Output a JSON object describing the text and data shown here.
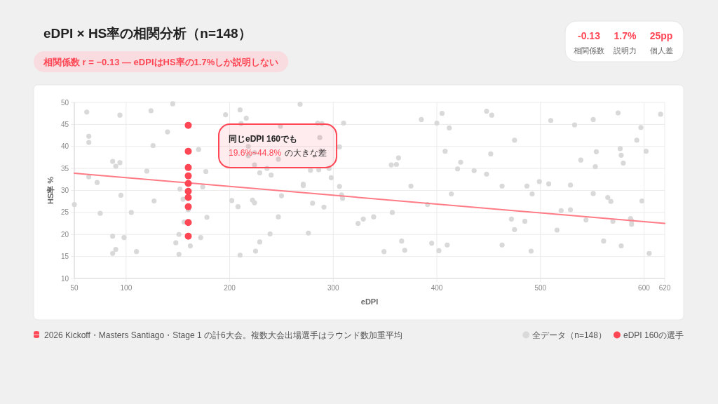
{
  "chart_data": {
    "type": "scatter",
    "title": "eDPI × HS率の相関分析（n=148）",
    "subtitle": "相関係数 r = −0.13 — eDPIはHS率の1.7%しか説明しない",
    "xlabel": "eDPI",
    "ylabel": "HS率 %",
    "annotations": [
      "-0.13",
      "相関係数",
      "1.7%",
      "説明力",
      "25pp",
      "個人差",
      "同じeDPI 160でも",
      "19.6%~44.8%",
      "の大きな差",
      "2026 Kickoff・Masters Santiago・Stage 1 の計6大会。複数大会出場選手はラウンド数加重平均"
    ],
    "xlim": [
      50,
      620
    ],
    "xticks": [
      50,
      100,
      200,
      300,
      400,
      500,
      600,
      620
    ],
    "ylim": [
      10,
      50
    ],
    "yticks": [
      10,
      15,
      20,
      25,
      30,
      35,
      40,
      45,
      50
    ],
    "grid": true,
    "legend": "bottom right",
    "marker": "circle",
    "series": [
      {
        "name": "全データ（n=148）",
        "color": "#d9d9d9",
        "x": [
          50,
          62,
          64,
          64,
          64,
          72,
          75,
          87,
          90,
          94,
          94,
          95,
          87,
          90,
          87,
          98,
          105,
          110,
          120,
          124,
          126,
          127,
          140,
          145,
          148,
          151,
          151,
          152,
          155,
          156,
          162,
          160,
          170,
          177,
          174,
          178,
          172,
          196,
          210,
          211,
          216,
          202,
          208,
          210,
          268,
          249,
          227,
          218,
          224,
          218,
          287,
          288,
          306,
          247,
          224,
          222,
          224,
          229,
          236,
          240,
          250,
          247,
          239,
          229,
          225,
          271,
          271,
          278,
          286,
          296,
          298,
          280,
          291,
          276,
          285,
          289,
          310,
          306,
          308,
          309,
          324,
          329,
          339,
          349,
          356,
          361,
          363,
          357,
          366,
          369,
          375,
          385,
          391,
          395,
          400,
          402,
          405,
          412,
          408,
          410,
          414,
          420,
          423,
          436,
          448,
          448,
          453,
          452,
          475,
          463,
          472,
          475,
          485,
          463,
          487,
          492,
          491,
          499,
          508,
          510,
          516,
          520,
          529,
          529,
          533,
          539,
          544,
          551,
          554,
          553,
          551,
          561,
          565,
          568,
          570,
          575,
          577,
          578,
          580,
          578,
          587,
          588,
          588,
          593,
          597,
          598,
          602,
          605,
          616
        ],
        "values": [
          26.8,
          47.8,
          42.3,
          40.9,
          33.1,
          31.8,
          24.8,
          36.6,
          35.5,
          36.3,
          47.1,
          28.9,
          19.6,
          16.6,
          15.7,
          19.3,
          25.0,
          16.1,
          34.4,
          48.1,
          40.2,
          27.6,
          43.3,
          49.7,
          18.1,
          15.5,
          20.0,
          30.3,
          28.0,
          22.8,
          17.4,
          25.6,
          39.3,
          34.3,
          30.8,
          23.9,
          19.3,
          47.2,
          48.3,
          45.2,
          46.4,
          27.7,
          26.3,
          15.3,
          49.6,
          44.6,
          42.2,
          40.0,
          38.6,
          37.9,
          42.0,
          39.0,
          39.9,
          37.1,
          35.8,
          27.8,
          27.2,
          34.0,
          35.0,
          33.5,
          28.8,
          24.0,
          20.1,
          18.3,
          16.2,
          31.4,
          31.1,
          34.6,
          34.7,
          35.0,
          32.9,
          27.1,
          26.2,
          20.3,
          45.3,
          45.2,
          45.3,
          30.9,
          29.0,
          28.2,
          22.5,
          23.5,
          24.0,
          16.1,
          35.8,
          35.9,
          37.4,
          25.0,
          18.5,
          16.4,
          31.0,
          46.1,
          26.8,
          18.0,
          45.3,
          16.3,
          47.5,
          44.2,
          38.9,
          17.6,
          29.2,
          34.9,
          36.4,
          34.5,
          33.7,
          48.0,
          47.1,
          38.3,
          41.4,
          31.0,
          23.5,
          21.1,
          23.0,
          17.6,
          31.0,
          29.2,
          16.2,
          32.0,
          31.5,
          45.9,
          21.0,
          25.4,
          31.2,
          25.6,
          44.9,
          36.9,
          23.3,
          46.1,
          38.8,
          35.4,
          29.3,
          18.5,
          28.4,
          27.5,
          23.0,
          47.6,
          39.5,
          38.0,
          36.2,
          17.4,
          23.6,
          23.1,
          22.3,
          41.4,
          44.3,
          27.6,
          38.9,
          15.7,
          47.3
        ]
      },
      {
        "type": "line",
        "marker": "none",
        "color": "#ff7b86",
        "x": [
          50,
          620
        ],
        "values": [
          33.9,
          22.5
        ]
      },
      {
        "name": "eDPI 160の選手",
        "color": "#ff4655",
        "x": [
          160,
          160,
          160,
          160,
          160,
          160,
          160,
          160,
          160,
          160
        ],
        "values": [
          44.8,
          38.9,
          35.2,
          33.3,
          31.6,
          29.8,
          28.4,
          26.3,
          22.7,
          19.6
        ]
      }
    ]
  }
}
